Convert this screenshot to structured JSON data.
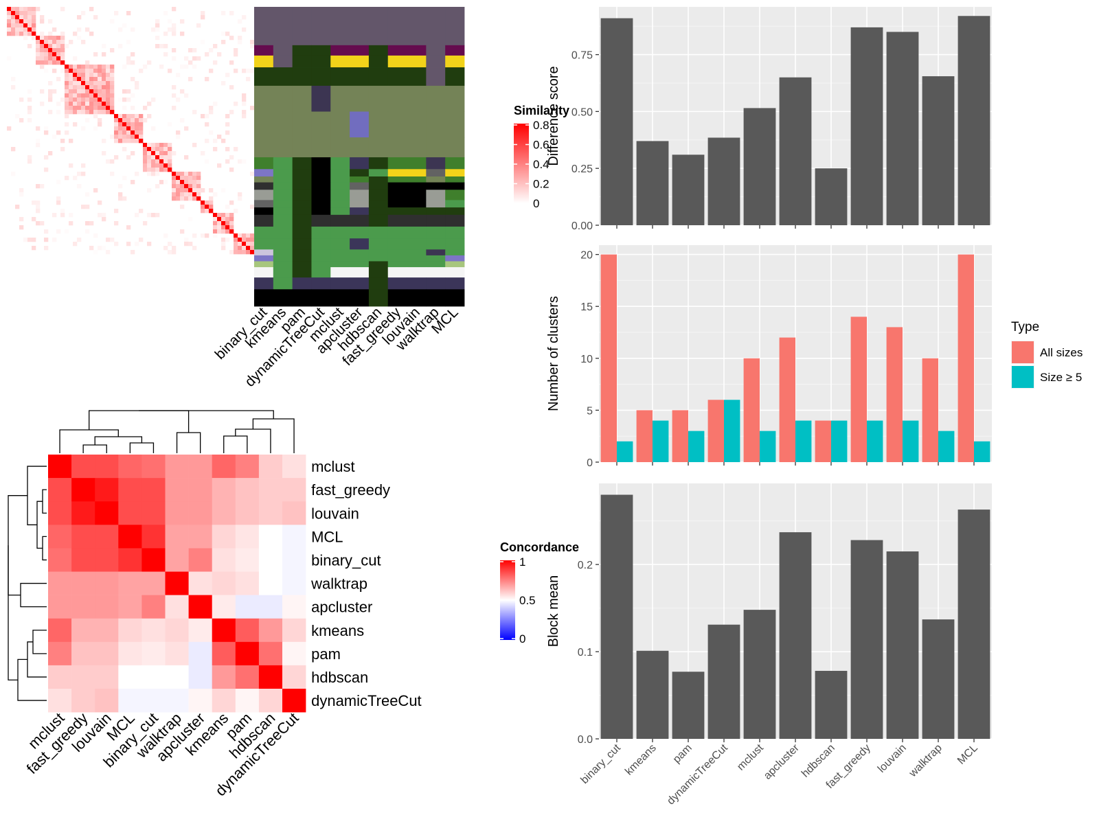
{
  "methods_order": [
    "binary_cut",
    "kmeans",
    "pam",
    "dynamicTreeCut",
    "mclust",
    "apcluster",
    "hdbscan",
    "fast_greedy",
    "louvain",
    "walktrap",
    "MCL"
  ],
  "similarity_legend": {
    "title": "Similarity",
    "ticks": [
      "0.8",
      "0.6",
      "0.4",
      "0.2",
      "0"
    ]
  },
  "concordance_legend": {
    "title": "Concordance",
    "ticks": [
      "1",
      "0.5",
      "0"
    ]
  },
  "type_legend": {
    "title": "Type",
    "items": [
      {
        "label": "All sizes",
        "color": "#F8766D"
      },
      {
        "label": "Size ≥ 5",
        "color": "#00BFC4"
      }
    ]
  },
  "chart_data": [
    {
      "type": "heatmap",
      "name": "similarity_matrix",
      "title": "",
      "legend_title": "Similarity",
      "range": [
        0,
        0.8
      ],
      "note": "block diagonal similarity matrix of ~60 terms"
    },
    {
      "type": "heatmap",
      "name": "cluster_assignment",
      "title": "",
      "categories": [
        "binary_cut",
        "kmeans",
        "pam",
        "dynamicTreeCut",
        "mclust",
        "apcluster",
        "hdbscan",
        "fast_greedy",
        "louvain",
        "walktrap",
        "MCL"
      ]
    },
    {
      "type": "heatmap",
      "name": "concordance",
      "legend_title": "Concordance",
      "range": [
        0,
        1
      ],
      "rows": [
        "mclust",
        "fast_greedy",
        "louvain",
        "MCL",
        "binary_cut",
        "walktrap",
        "apcluster",
        "kmeans",
        "pam",
        "hdbscan",
        "dynamicTreeCut"
      ],
      "columns": [
        "mclust",
        "fast_greedy",
        "louvain",
        "MCL",
        "binary_cut",
        "walktrap",
        "apcluster",
        "kmeans",
        "pam",
        "hdbscan",
        "dynamicTreeCut"
      ],
      "values": [
        [
          1.0,
          0.85,
          0.85,
          0.8,
          0.78,
          0.7,
          0.7,
          0.8,
          0.75,
          0.6,
          0.56
        ],
        [
          0.85,
          1.0,
          0.95,
          0.85,
          0.85,
          0.7,
          0.7,
          0.65,
          0.62,
          0.6,
          0.6
        ],
        [
          0.85,
          0.95,
          1.0,
          0.85,
          0.85,
          0.7,
          0.7,
          0.65,
          0.62,
          0.6,
          0.62
        ],
        [
          0.8,
          0.85,
          0.85,
          1.0,
          0.9,
          0.68,
          0.68,
          0.58,
          0.55,
          0.5,
          0.48
        ],
        [
          0.78,
          0.85,
          0.85,
          0.9,
          1.0,
          0.68,
          0.75,
          0.56,
          0.54,
          0.5,
          0.48
        ],
        [
          0.7,
          0.7,
          0.7,
          0.68,
          0.68,
          1.0,
          0.56,
          0.58,
          0.56,
          0.5,
          0.48
        ],
        [
          0.7,
          0.7,
          0.7,
          0.68,
          0.75,
          0.56,
          1.0,
          0.54,
          0.46,
          0.46,
          0.52
        ],
        [
          0.8,
          0.65,
          0.65,
          0.58,
          0.56,
          0.58,
          0.54,
          1.0,
          0.82,
          0.7,
          0.58
        ],
        [
          0.75,
          0.62,
          0.62,
          0.55,
          0.54,
          0.56,
          0.46,
          0.82,
          1.0,
          0.78,
          0.52
        ],
        [
          0.6,
          0.6,
          0.6,
          0.5,
          0.5,
          0.5,
          0.46,
          0.7,
          0.78,
          1.0,
          0.58
        ],
        [
          0.56,
          0.6,
          0.62,
          0.48,
          0.48,
          0.48,
          0.52,
          0.58,
          0.52,
          0.58,
          1.0
        ]
      ]
    },
    {
      "type": "bar",
      "name": "difference_score",
      "categories": [
        "binary_cut",
        "kmeans",
        "pam",
        "dynamicTreeCut",
        "mclust",
        "apcluster",
        "hdbscan",
        "fast_greedy",
        "louvain",
        "walktrap",
        "MCL"
      ],
      "values": [
        0.91,
        0.37,
        0.31,
        0.385,
        0.515,
        0.65,
        0.25,
        0.87,
        0.85,
        0.655,
        0.92
      ],
      "ylabel": "Difference score",
      "ylim": [
        0,
        0.96
      ],
      "yticks": [
        "0.00",
        "0.25",
        "0.50",
        "0.75"
      ],
      "color": "#595959"
    },
    {
      "type": "bar",
      "name": "number_of_clusters",
      "categories": [
        "binary_cut",
        "kmeans",
        "pam",
        "dynamicTreeCut",
        "mclust",
        "apcluster",
        "hdbscan",
        "fast_greedy",
        "louvain",
        "walktrap",
        "MCL"
      ],
      "series": [
        {
          "name": "All sizes",
          "values": [
            20,
            5,
            5,
            6,
            10,
            12,
            4,
            14,
            13,
            10,
            20
          ],
          "color": "#F8766D"
        },
        {
          "name": "Size ≥ 5",
          "values": [
            2,
            4,
            3,
            6,
            3,
            4,
            4,
            4,
            4,
            3,
            2
          ],
          "color": "#00BFC4"
        }
      ],
      "ylabel": "Number of clusters",
      "ylim": [
        0,
        20.9
      ],
      "yticks": [
        "0",
        "5",
        "10",
        "15",
        "20"
      ],
      "legend": "right"
    },
    {
      "type": "bar",
      "name": "block_mean",
      "categories": [
        "binary_cut",
        "kmeans",
        "pam",
        "dynamicTreeCut",
        "mclust",
        "apcluster",
        "hdbscan",
        "fast_greedy",
        "louvain",
        "walktrap",
        "MCL"
      ],
      "values": [
        0.28,
        0.101,
        0.077,
        0.131,
        0.148,
        0.237,
        0.078,
        0.228,
        0.215,
        0.137,
        0.263
      ],
      "ylabel": "Block mean",
      "ylim": [
        0,
        0.293
      ],
      "yticks": [
        "0.0",
        "0.1",
        "0.2"
      ],
      "color": "#595959"
    }
  ]
}
